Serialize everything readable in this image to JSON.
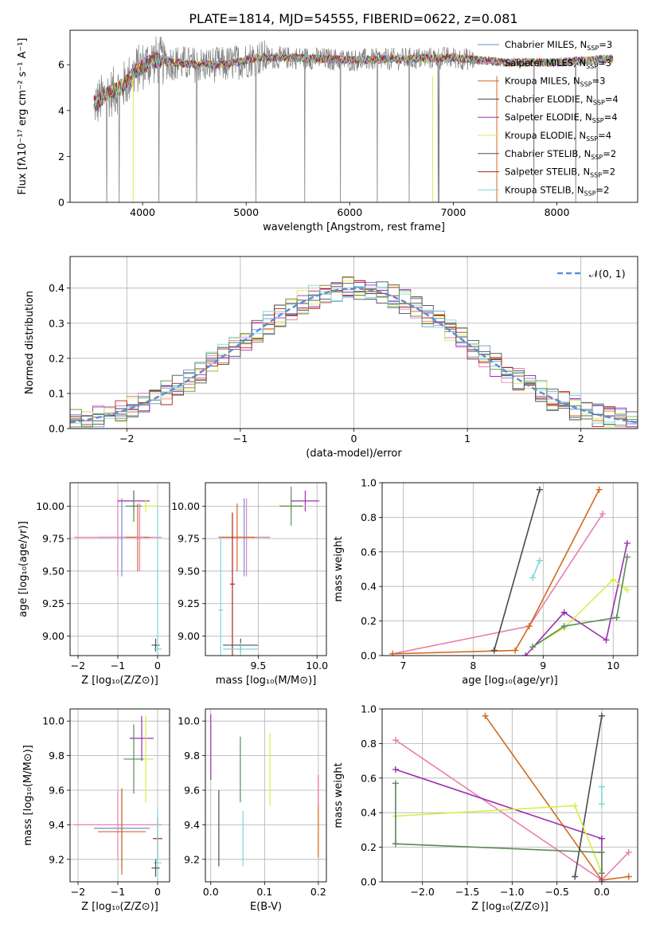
{
  "figure": {
    "title": "PLATE=1814, MJD=54555, FIBERID=0622, z=0.081"
  },
  "colors": {
    "chabrier_miles": "#6a8fd8",
    "salpeter_miles": "#e87fb2",
    "kroupa_miles": "#d2691e",
    "chabrier_elodie": "#4a4a4a",
    "salpeter_elodie": "#9b30b0",
    "kroupa_elodie": "#d6ee4a",
    "chabrier_stelib": "#505050",
    "salpeter_stelib": "#b22222",
    "kroupa_stelib": "#7fd6d6",
    "gaussian": "#5b8fd6",
    "green": "#5a8a5a"
  },
  "chart_data": [
    {
      "id": "spectrum",
      "type": "line",
      "xlabel": "wavelength [Angstrom, rest frame]",
      "ylabel": "Flux [fλ10⁻¹⁷ erg cm⁻² s⁻¹ A⁻¹]",
      "xlim": [
        3300,
        8780
      ],
      "ylim": [
        0,
        7.5
      ],
      "xticks": [
        "4000",
        "5000",
        "6000",
        "7000",
        "8000"
      ],
      "xtick_values": [
        4000,
        5000,
        6000,
        7000,
        8000
      ],
      "yticks": [
        "0",
        "2",
        "4",
        "6"
      ],
      "ytick_values": [
        0,
        2,
        4,
        6
      ],
      "grid": false,
      "legend_position": "top-right",
      "legend": [
        {
          "label": "Chabrier MILES, N",
          "sub": "SSP",
          "tail": "=3",
          "color": "#6a8fd8"
        },
        {
          "label": "Salpeter MILES, N",
          "sub": "SSP",
          "tail": "=3",
          "color": "#e87fb2"
        },
        {
          "label": "Kroupa MILES, N",
          "sub": "SSP",
          "tail": "=3",
          "color": "#d2691e"
        },
        {
          "label": "Chabrier ELODIE, N",
          "sub": "SSP",
          "tail": "=4",
          "color": "#4a4a4a"
        },
        {
          "label": "Salpeter ELODIE, N",
          "sub": "SSP",
          "tail": "=4",
          "color": "#9b30b0"
        },
        {
          "label": "Kroupa ELODIE, N",
          "sub": "SSP",
          "tail": "=4",
          "color": "#d6ee4a"
        },
        {
          "label": "Chabrier STELIB, N",
          "sub": "SSP",
          "tail": "=2",
          "color": "#505050"
        },
        {
          "label": "Salpeter STELIB, N",
          "sub": "SSP",
          "tail": "=2",
          "color": "#b22222"
        },
        {
          "label": "Kroupa STELIB, N",
          "sub": "SSP",
          "tail": "=2",
          "color": "#7fd6d6"
        }
      ],
      "continuum_points": [
        [
          3550,
          4.3
        ],
        [
          3650,
          4.7
        ],
        [
          3800,
          5.0
        ],
        [
          3950,
          5.8
        ],
        [
          4100,
          6.2
        ],
        [
          4300,
          6.1
        ],
        [
          4500,
          6.0
        ],
        [
          4800,
          6.0
        ],
        [
          5100,
          6.3
        ],
        [
          5500,
          6.3
        ],
        [
          6000,
          6.2
        ],
        [
          6500,
          6.25
        ],
        [
          7000,
          6.3
        ],
        [
          7500,
          6.1
        ],
        [
          8000,
          6.1
        ],
        [
          8500,
          6.25
        ]
      ]
    },
    {
      "id": "residuals",
      "type": "histogram",
      "xlabel": "(data-model)/error",
      "ylabel": "Normed distribution",
      "xlim": [
        -2.5,
        2.5
      ],
      "ylim": [
        0,
        0.49
      ],
      "xticks": [
        "−2",
        "−1",
        "0",
        "1",
        "2"
      ],
      "xtick_values": [
        -2,
        -1,
        0,
        1,
        2
      ],
      "yticks": [
        "0.0",
        "0.1",
        "0.2",
        "0.3",
        "0.4"
      ],
      "ytick_values": [
        0,
        0.1,
        0.2,
        0.3,
        0.4
      ],
      "grid": true,
      "legend_position": "top-right",
      "gaussian_label": "𝒩(0, 1)",
      "bin_width": 0.1
    },
    {
      "id": "age_vs_Z",
      "type": "errorbar",
      "xlabel": "Z [log₁₀(Z/Z⊙)]",
      "ylabel": "age  [log₁₀(age/yr)]",
      "xlim": [
        -2.2,
        0.3
      ],
      "ylim": [
        8.85,
        10.18
      ],
      "xticks": [
        "−2",
        "−1",
        "0"
      ],
      "xtick_values": [
        -2,
        -1,
        0
      ],
      "yticks": [
        "9.00",
        "9.25",
        "9.50",
        "9.75",
        "10.00"
      ],
      "ytick_values": [
        9.0,
        9.25,
        9.5,
        9.75,
        10.0
      ],
      "grid": true,
      "points": [
        {
          "x": -0.9,
          "y": 9.76,
          "xerr": 0.6,
          "yerr": 0.3,
          "color": "#6a8fd8"
        },
        {
          "x": -1.0,
          "y": 9.76,
          "xerr": 1.1,
          "yerr": 0.3,
          "color": "#e87fb2"
        },
        {
          "x": -0.5,
          "y": 9.76,
          "xerr": 0.3,
          "yerr": 0.26,
          "color": "#d2691e"
        },
        {
          "x": -0.6,
          "y": 10.04,
          "xerr": 0.4,
          "yerr": 0.08,
          "color": "#9b30b0"
        },
        {
          "x": -0.3,
          "y": 10.0,
          "xerr": 0.3,
          "yerr": 0.05,
          "color": "#d6ee4a"
        },
        {
          "x": -0.6,
          "y": 10.0,
          "xerr": 0.2,
          "yerr": 0.12,
          "color": "#5a8a5a"
        },
        {
          "x": -0.45,
          "y": 9.76,
          "xerr": 0.1,
          "yerr": 0.26,
          "color": "#e87fb2"
        },
        {
          "x": -0.05,
          "y": 8.93,
          "xerr": 0.1,
          "yerr": 0.05,
          "color": "#505050"
        },
        {
          "x": 0.0,
          "y": 8.9,
          "xerr": 0.1,
          "yerr": 0.05,
          "color": "#7fd6d6"
        },
        {
          "x": 0.0,
          "y": 9.45,
          "xerr": 0.02,
          "yerr": 0.55,
          "color": "#7fd6d6"
        }
      ]
    },
    {
      "id": "age_vs_mass",
      "type": "errorbar",
      "xlabel": "mass [log₁₀(M/M⊙)]",
      "ylabel": "",
      "xlim": [
        9.05,
        10.08
      ],
      "ylim": [
        8.85,
        10.18
      ],
      "xticks": [
        "9.5",
        "10.0"
      ],
      "xtick_values": [
        9.5,
        10.0
      ],
      "yticks": [
        "9.00",
        "9.25",
        "9.50",
        "9.75",
        "10.00"
      ],
      "ytick_values": [
        9.0,
        9.25,
        9.5,
        9.75,
        10.0
      ],
      "grid": true,
      "points": [
        {
          "x": 9.38,
          "y": 9.76,
          "xerr": 0.22,
          "yerr": 0.3,
          "color": "#6a8fd8"
        },
        {
          "x": 9.4,
          "y": 9.76,
          "xerr": 0.2,
          "yerr": 0.3,
          "color": "#e87fb2"
        },
        {
          "x": 9.32,
          "y": 9.76,
          "xerr": 0.15,
          "yerr": 0.26,
          "color": "#d2691e"
        },
        {
          "x": 9.9,
          "y": 10.04,
          "xerr": 0.12,
          "yerr": 0.08,
          "color": "#9b30b0"
        },
        {
          "x": 9.78,
          "y": 10.0,
          "xerr": 0.12,
          "yerr": 0.05,
          "color": "#d6ee4a"
        },
        {
          "x": 9.78,
          "y": 10.0,
          "xerr": 0.1,
          "yerr": 0.15,
          "color": "#5a8a5a"
        },
        {
          "x": 9.18,
          "y": 9.2,
          "xerr": 0.02,
          "yerr": 0.55,
          "color": "#7fd6d6"
        },
        {
          "x": 9.28,
          "y": 9.4,
          "xerr": 0.02,
          "yerr": 0.55,
          "color": "#b22222"
        },
        {
          "x": 9.35,
          "y": 8.93,
          "xerr": 0.15,
          "yerr": 0.05,
          "color": "#505050"
        },
        {
          "x": 9.35,
          "y": 8.9,
          "xerr": 0.15,
          "yerr": 0.05,
          "color": "#7fd6d6"
        }
      ]
    },
    {
      "id": "weight_vs_age",
      "type": "line",
      "xlabel": "age  [log₁₀(age/yr)]",
      "ylabel": "mass weight",
      "xlim": [
        6.7,
        10.35
      ],
      "ylim": [
        0,
        1.0
      ],
      "xticks": [
        "7",
        "8",
        "9",
        "10"
      ],
      "xtick_values": [
        7,
        8,
        9,
        10
      ],
      "yticks": [
        "0.0",
        "0.2",
        "0.4",
        "0.6",
        "0.8",
        "1.0"
      ],
      "ytick_values": [
        0,
        0.2,
        0.4,
        0.6,
        0.8,
        1.0
      ],
      "grid": true,
      "series": [
        {
          "color": "#e87fb2",
          "x": [
            6.85,
            8.8,
            9.85
          ],
          "y": [
            0.01,
            0.17,
            0.82
          ]
        },
        {
          "color": "#d2691e",
          "x": [
            6.85,
            8.6,
            8.8,
            9.8
          ],
          "y": [
            0.01,
            0.03,
            0.17,
            0.96
          ]
        },
        {
          "color": "#4a4a4a",
          "x": [
            8.3,
            8.95
          ],
          "y": [
            0.03,
            0.96
          ]
        },
        {
          "color": "#7fd6d6",
          "x": [
            8.85,
            8.95
          ],
          "y": [
            0.45,
            0.55
          ]
        },
        {
          "color": "#9b30b0",
          "x": [
            8.75,
            9.3,
            9.9,
            10.2
          ],
          "y": [
            0.0,
            0.25,
            0.09,
            0.65
          ]
        },
        {
          "color": "#d6ee4a",
          "x": [
            8.85,
            9.3,
            10.0,
            10.2
          ],
          "y": [
            0.05,
            0.16,
            0.44,
            0.38
          ]
        },
        {
          "color": "#5a8a5a",
          "x": [
            8.85,
            9.3,
            10.05,
            10.2
          ],
          "y": [
            0.05,
            0.17,
            0.22,
            0.57
          ]
        }
      ]
    },
    {
      "id": "mass_vs_Z",
      "type": "errorbar",
      "xlabel": "Z [log₁₀(Z/Z⊙)]",
      "ylabel": "mass [log₁₀(M/M⊙)]",
      "xlim": [
        -2.2,
        0.3
      ],
      "ylim": [
        9.07,
        10.07
      ],
      "xticks": [
        "−2",
        "−1",
        "0"
      ],
      "xtick_values": [
        -2,
        -1,
        0
      ],
      "yticks": [
        "9.2",
        "9.4",
        "9.6",
        "9.8",
        "10.0"
      ],
      "ytick_values": [
        9.2,
        9.4,
        9.6,
        9.8,
        10.0
      ],
      "grid": true,
      "points": [
        {
          "x": -0.9,
          "y": 9.38,
          "xerr": 0.7,
          "yerr": 0.22,
          "color": "#6a8fd8"
        },
        {
          "x": -1.0,
          "y": 9.4,
          "xerr": 1.1,
          "yerr": 0.2,
          "color": "#e87fb2"
        },
        {
          "x": -0.9,
          "y": 9.36,
          "xerr": 0.6,
          "yerr": 0.25,
          "color": "#d2691e"
        },
        {
          "x": -0.4,
          "y": 9.9,
          "xerr": 0.3,
          "yerr": 0.13,
          "color": "#9b30b0"
        },
        {
          "x": -0.3,
          "y": 9.78,
          "xerr": 0.2,
          "yerr": 0.25,
          "color": "#d6ee4a"
        },
        {
          "x": -0.6,
          "y": 9.78,
          "xerr": 0.25,
          "yerr": 0.2,
          "color": "#5a8a5a"
        },
        {
          "x": 0.0,
          "y": 9.32,
          "xerr": 0.12,
          "yerr": 0.12,
          "color": "#b22222"
        },
        {
          "x": 0.0,
          "y": 9.18,
          "xerr": 0.1,
          "yerr": 0.12,
          "color": "#7fd6d6"
        },
        {
          "x": -0.05,
          "y": 9.15,
          "xerr": 0.1,
          "yerr": 0.05,
          "color": "#505050"
        },
        {
          "x": 0.0,
          "y": 9.4,
          "xerr": 0.02,
          "yerr": 0.1,
          "color": "#7fd6d6"
        }
      ]
    },
    {
      "id": "mass_vs_ebv",
      "type": "errorbar",
      "xlabel": "E(B-V)",
      "ylabel": "",
      "xlim": [
        -0.01,
        0.215
      ],
      "ylim": [
        9.07,
        10.07
      ],
      "xticks": [
        "0.0",
        "0.1",
        "0.2"
      ],
      "xtick_values": [
        0.0,
        0.1,
        0.2
      ],
      "yticks": [
        "9.2",
        "9.4",
        "9.6",
        "9.8",
        "10.0"
      ],
      "ytick_values": [
        9.2,
        9.4,
        9.6,
        9.8,
        10.0
      ],
      "grid": true,
      "points": [
        {
          "x": 0.0,
          "y": 9.85,
          "xerr": 0.0,
          "yerr": 0.19,
          "color": "#9b30b0"
        },
        {
          "x": 0.015,
          "y": 9.38,
          "xerr": 0.0,
          "yerr": 0.22,
          "color": "#505050"
        },
        {
          "x": 0.055,
          "y": 9.72,
          "xerr": 0.0,
          "yerr": 0.19,
          "color": "#5a8a5a"
        },
        {
          "x": 0.06,
          "y": 9.32,
          "xerr": 0.0,
          "yerr": 0.16,
          "color": "#7fd6d6"
        },
        {
          "x": 0.11,
          "y": 9.72,
          "xerr": 0.0,
          "yerr": 0.21,
          "color": "#d6ee4a"
        },
        {
          "x": 0.2,
          "y": 9.45,
          "xerr": 0.0,
          "yerr": 0.24,
          "color": "#d2691e"
        },
        {
          "x": 0.2,
          "y": 9.6,
          "xerr": 0.0,
          "yerr": 0.09,
          "color": "#e87fb2"
        }
      ]
    },
    {
      "id": "weight_vs_Z",
      "type": "line",
      "xlabel": "Z [log₁₀(Z/Z⊙)]",
      "ylabel": "mass weight",
      "xlim": [
        -2.45,
        0.4
      ],
      "ylim": [
        0,
        1.0
      ],
      "xticks": [
        "−2.0",
        "−1.5",
        "−1.0",
        "−0.5",
        "0.0"
      ],
      "xtick_values": [
        -2.0,
        -1.5,
        -1.0,
        -0.5,
        0.0
      ],
      "yticks": [
        "0.0",
        "0.2",
        "0.4",
        "0.6",
        "0.8",
        "1.0"
      ],
      "ytick_values": [
        0,
        0.2,
        0.4,
        0.6,
        0.8,
        1.0
      ],
      "grid": true,
      "series": [
        {
          "color": "#e87fb2",
          "x": [
            -2.3,
            0.0,
            0.3
          ],
          "y": [
            0.82,
            0.01,
            0.17
          ]
        },
        {
          "color": "#d2691e",
          "x": [
            -1.3,
            0.0,
            0.3
          ],
          "y": [
            0.96,
            0.01,
            0.03
          ]
        },
        {
          "color": "#4a4a4a",
          "x": [
            -0.3,
            0.0
          ],
          "y": [
            0.03,
            0.96
          ]
        },
        {
          "color": "#7fd6d6",
          "x": [
            0.0,
            0.0
          ],
          "y": [
            0.45,
            0.55
          ]
        },
        {
          "color": "#9b30b0",
          "x": [
            -2.3,
            0.0,
            0.0
          ],
          "y": [
            0.65,
            0.25,
            0.0
          ]
        },
        {
          "color": "#d6ee4a",
          "x": [
            -2.3,
            -0.3,
            0.0
          ],
          "y": [
            0.38,
            0.44,
            0.05
          ]
        },
        {
          "color": "#5a8a5a",
          "x": [
            -2.3,
            -2.3,
            0.0,
            0.0
          ],
          "y": [
            0.57,
            0.22,
            0.17,
            0.05
          ]
        }
      ]
    }
  ]
}
